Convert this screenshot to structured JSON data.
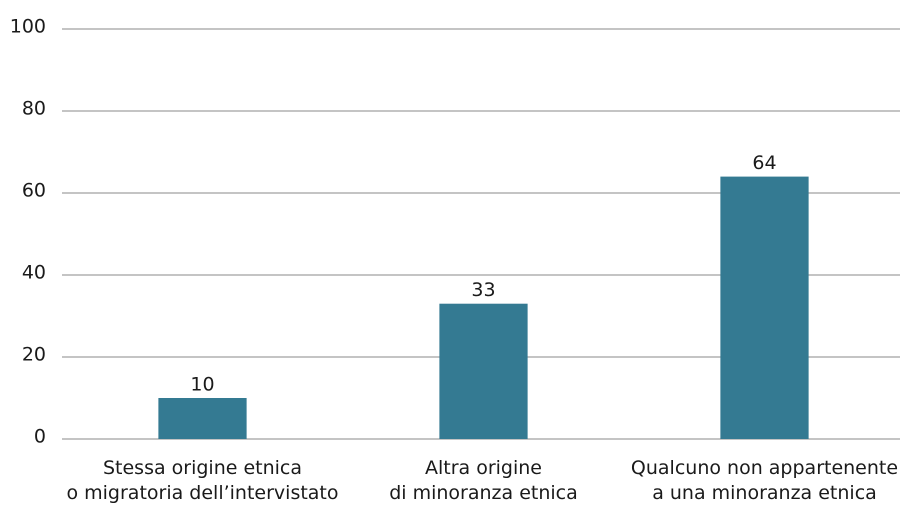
{
  "chart_data": {
    "type": "bar",
    "categories": [
      "Stessa origine etnica\no migratoria dell’intervistato",
      "Altra origine\ndi minoranza etnica",
      "Qualcuno non appartenente\na una minoranza etnica"
    ],
    "values": [
      10,
      33,
      64
    ],
    "color": "#347a92",
    "ylim": [
      0,
      100
    ],
    "yticks": [
      0,
      20,
      40,
      60,
      80,
      100
    ],
    "grid": true
  }
}
